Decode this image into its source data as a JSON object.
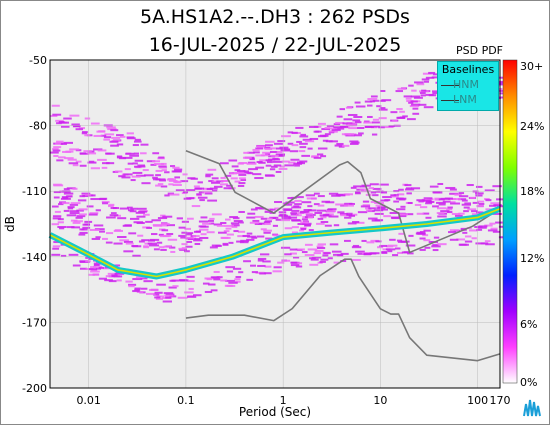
{
  "chart_data": {
    "type": "heatmap",
    "title": "5A.HS1A2.--.DH3 : 262 PSDs",
    "subtitle": "16-JUL-2025 / 22-JUL-2025",
    "xlabel": "Period (Sec)",
    "ylabel": "dB",
    "x_scale": "log",
    "xlim": [
      0.004,
      170
    ],
    "ylim": [
      -200,
      -50
    ],
    "x_ticks": [
      {
        "value": 0.01,
        "label": "0.01"
      },
      {
        "value": 0.1,
        "label": "0.1"
      },
      {
        "value": 1,
        "label": "1"
      },
      {
        "value": 10,
        "label": "10"
      },
      {
        "value": 100,
        "label": "100"
      },
      {
        "value": 170,
        "label": "170"
      }
    ],
    "y_ticks": [
      {
        "value": -50,
        "label": "-50"
      },
      {
        "value": -80,
        "label": "-80"
      },
      {
        "value": -110,
        "label": "-110"
      },
      {
        "value": -140,
        "label": "-140"
      },
      {
        "value": -170,
        "label": "-170"
      },
      {
        "value": -200,
        "label": "-200"
      }
    ],
    "colorbar": {
      "title": "PSD PDF",
      "labels": [
        "30+",
        "24%",
        "18%",
        "12%",
        "6%",
        "0%"
      ],
      "colors": [
        "#ff0000",
        "#ff8c00",
        "#ffff00",
        "#7fff00",
        "#00e0a0",
        "#00a0ff",
        "#0020ff",
        "#a000ff",
        "#ff40ff",
        "#ffffff"
      ]
    },
    "legend": {
      "title": "Baselines",
      "entries": [
        "HNM",
        "LNM"
      ],
      "placement": "top-right"
    },
    "series": [
      {
        "name": "HNM",
        "x": [
          0.1,
          0.22,
          0.32,
          0.8,
          3.8,
          4.6,
          6.3,
          7.9,
          15.4,
          20,
          89,
          170
        ],
        "y": [
          -91.5,
          -97.4,
          -110.5,
          -120,
          -98,
          -96.5,
          -101.5,
          -113.4,
          -120,
          -138,
          -126,
          -118
        ]
      },
      {
        "name": "LNM",
        "x": [
          0.1,
          0.17,
          0.4,
          0.8,
          1.24,
          2.4,
          4.3,
          5,
          6,
          10,
          12.8,
          15.4,
          20,
          30,
          100,
          170
        ],
        "y": [
          -168,
          -166.7,
          -166.7,
          -169.2,
          -163.7,
          -148.6,
          -141.1,
          -141.1,
          -149,
          -163.8,
          -166.2,
          -166.2,
          -177,
          -185,
          -187.5,
          -184.4
        ]
      },
      {
        "name": "mode",
        "x": [
          0.004,
          0.01,
          0.02,
          0.05,
          0.1,
          0.3,
          1,
          3,
          10,
          30,
          100,
          170
        ],
        "y": [
          -130,
          -139,
          -146,
          -149,
          -146,
          -140,
          -131,
          -129,
          -127,
          -125,
          -122,
          -118
        ]
      }
    ]
  }
}
